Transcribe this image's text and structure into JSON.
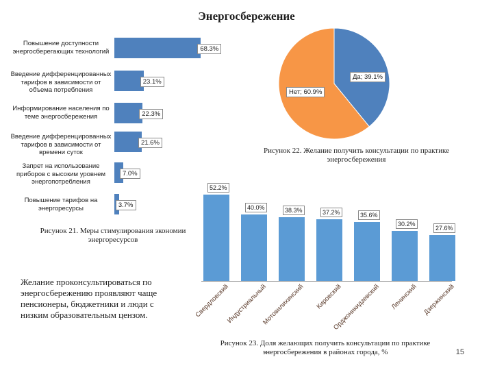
{
  "title": "Энергосбережение",
  "chart_data": [
    {
      "type": "bar",
      "orientation": "horizontal",
      "categories": [
        "Повышение доступности энергосберегающих технологий",
        "Введение дифференцированных тарифов в зависимости от объема потребления",
        "Информирование населения по теме энергосбережения",
        "Введение дифференцированных тарифов в зависимости от времени суток",
        "Запрет на использование приборов с высоким уровнем энергопотребления",
        "Повышение тарифов на энергоресурсы"
      ],
      "values": [
        68.3,
        23.1,
        22.3,
        21.6,
        7.0,
        3.7
      ],
      "value_labels": [
        "68.3%",
        "23.1%",
        "22.3%",
        "21.6%",
        "7.0%",
        "3.7%"
      ],
      "caption": "Рисунок 21. Меры стимулирования экономии энергоресурсов",
      "color": "#4f81bd"
    },
    {
      "type": "pie",
      "labels": [
        "Да",
        "Нет"
      ],
      "values": [
        39.1,
        60.9
      ],
      "value_labels": [
        "Да; 39.1%",
        "Нет; 60.9%"
      ],
      "colors": [
        "#4f81bd",
        "#f79646"
      ],
      "caption": "Рисунок 22. Желание получить консультации по практике энергосбережения"
    },
    {
      "type": "bar",
      "categories": [
        "Свердловский",
        "Индустриальный",
        "Мотовилихинский",
        "Кировский",
        "Орджоникидзевский",
        "Ленинский",
        "Дзержинский"
      ],
      "values": [
        52.2,
        40.0,
        38.3,
        37.2,
        35.6,
        30.2,
        27.6
      ],
      "value_labels": [
        "52.2%",
        "40.0%",
        "38.3%",
        "37.2%",
        "35.6%",
        "30.2%",
        "27.6%"
      ],
      "caption": "Рисунок 23. Доля желающих получить консультации по практике энергосбережения в районах города, %",
      "color": "#5b9bd5"
    }
  ],
  "note": "Желание проконсультироваться по энергосбережению проявляют чаще пенсионеры, бюджетники и люди с низким образовательным цензом.",
  "page_number": "15"
}
